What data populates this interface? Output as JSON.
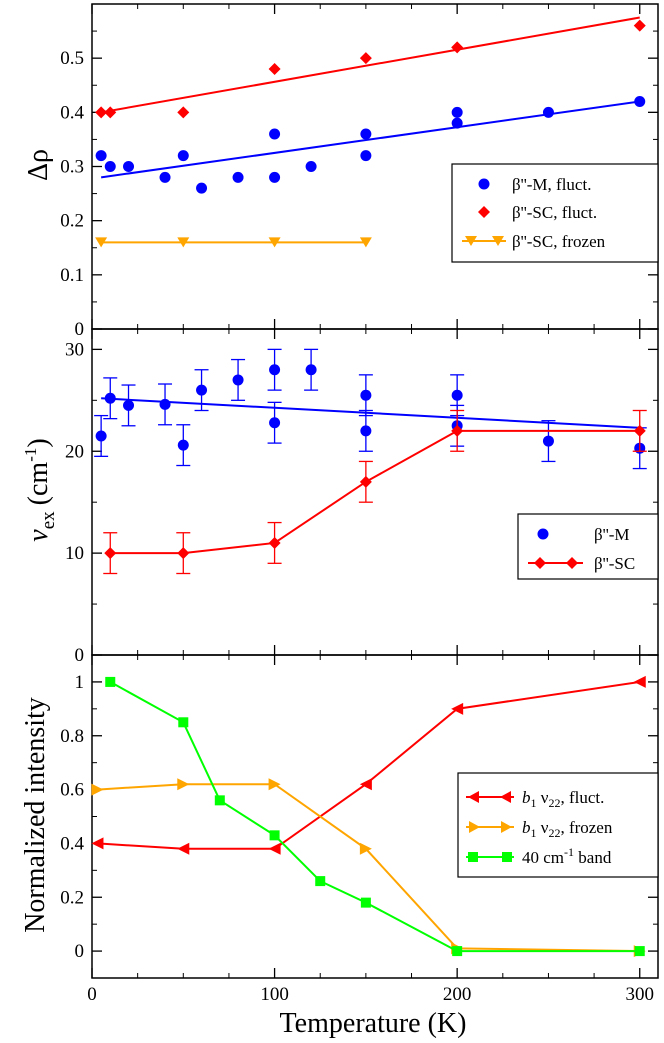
{
  "chart_data": [
    {
      "type": "scatter",
      "panel": "top",
      "ylabel": "Δρ",
      "xlim": [
        0,
        310
      ],
      "ylim": [
        0,
        0.6
      ],
      "yticks": [
        0,
        0.1,
        0.2,
        0.3,
        0.4,
        0.5
      ],
      "ytick_labels": [
        "0",
        "0.1",
        "0.2",
        "0.3",
        "0.4",
        "0.5"
      ],
      "legend_position": "middle-right",
      "series": [
        {
          "name": "β''-M, fluct.",
          "color": "#0000ff",
          "marker": "circle",
          "x": [
            5,
            10,
            20,
            40,
            50,
            60,
            80,
            100,
            100,
            120,
            150,
            150,
            200,
            200,
            250,
            300
          ],
          "y": [
            0.32,
            0.3,
            0.3,
            0.28,
            0.32,
            0.26,
            0.28,
            0.36,
            0.28,
            0.3,
            0.36,
            0.32,
            0.4,
            0.38,
            0.4,
            0.42
          ],
          "fit": {
            "x": [
              5,
              300
            ],
            "y": [
              0.28,
              0.42
            ]
          }
        },
        {
          "name": "β''-SC, fluct.",
          "color": "#ff0000",
          "marker": "diamond",
          "x": [
            5,
            10,
            50,
            100,
            150,
            200,
            300
          ],
          "y": [
            0.4,
            0.4,
            0.4,
            0.48,
            0.5,
            0.52,
            0.56
          ],
          "fit": {
            "x": [
              5,
              300
            ],
            "y": [
              0.4,
              0.575
            ]
          }
        },
        {
          "name": "β''-SC, frozen",
          "color": "#ffa500",
          "marker": "triangle-down",
          "line": true,
          "x": [
            5,
            50,
            100,
            150
          ],
          "y": [
            0.16,
            0.16,
            0.16,
            0.16
          ]
        }
      ]
    },
    {
      "type": "scatter",
      "panel": "middle",
      "ylabel_main": "ν",
      "ylabel_sub": "ex",
      "ylabel_unit": "(cm",
      "ylabel_sup": "-1",
      "ylabel_close": ")",
      "xlim": [
        0,
        310
      ],
      "ylim": [
        0,
        32
      ],
      "yticks": [
        0,
        10,
        20,
        30
      ],
      "ytick_labels": [
        "0",
        "10",
        "20",
        "30"
      ],
      "legend_position": "lower-right",
      "series": [
        {
          "name": "β''-M",
          "color": "#0000ff",
          "marker": "circle",
          "x": [
            5,
            10,
            20,
            40,
            50,
            60,
            80,
            100,
            100,
            120,
            150,
            150,
            200,
            200,
            250,
            300
          ],
          "y": [
            21.5,
            25.2,
            24.5,
            24.6,
            20.6,
            26.0,
            27.0,
            28.0,
            22.8,
            28.0,
            25.5,
            22.0,
            25.5,
            22.5,
            21.0,
            20.3
          ],
          "err": [
            2,
            2,
            2,
            2,
            2,
            2,
            2,
            2,
            2,
            2,
            2,
            2,
            2,
            2,
            2,
            2
          ],
          "fit": {
            "x": [
              5,
              300
            ],
            "y": [
              25.2,
              22.3
            ]
          }
        },
        {
          "name": "β''-SC",
          "color": "#ff0000",
          "marker": "diamond",
          "line": true,
          "x": [
            10,
            50,
            100,
            150,
            200,
            300
          ],
          "y": [
            10,
            10,
            11,
            17,
            22,
            22
          ],
          "err": [
            2,
            2,
            2,
            2,
            2,
            2
          ]
        }
      ]
    },
    {
      "type": "line",
      "panel": "bottom",
      "ylabel": "Normalized intensity",
      "xlabel": "Temperature (K)",
      "xlim": [
        0,
        310
      ],
      "xticks": [
        0,
        100,
        200,
        300
      ],
      "xtick_labels": [
        "0",
        "100",
        "200",
        "300"
      ],
      "ylim": [
        -0.1,
        1.1
      ],
      "yticks": [
        0,
        0.2,
        0.4,
        0.6,
        0.8,
        1
      ],
      "ytick_labels": [
        "0",
        "0.2",
        "0.4",
        "0.6",
        "0.8",
        "1"
      ],
      "legend_position": "lower-right",
      "series": [
        {
          "name_italic": "b",
          "name_sub1": "1",
          "name_mid": " ν",
          "name_sub2": "22",
          "name_tail": ", fluct.",
          "color": "#ff0000",
          "marker": "triangle-left",
          "x": [
            3,
            50,
            100,
            150,
            200,
            300
          ],
          "y": [
            0.4,
            0.38,
            0.38,
            0.62,
            0.9,
            1.0
          ]
        },
        {
          "name_italic": "b",
          "name_sub1": "1",
          "name_mid": " ν",
          "name_sub2": "22",
          "name_tail": ", frozen",
          "color": "#ffa500",
          "marker": "triangle-right",
          "x": [
            3,
            50,
            100,
            150,
            200,
            300
          ],
          "y": [
            0.6,
            0.62,
            0.62,
            0.38,
            0.01,
            0.0
          ]
        },
        {
          "name_main": "40 cm",
          "name_sup": "-1",
          "name_tail": " band",
          "color": "#00ff00",
          "marker": "square",
          "x": [
            10,
            50,
            70,
            100,
            125,
            150,
            200,
            300
          ],
          "y": [
            1.0,
            0.85,
            0.56,
            0.43,
            0.26,
            0.18,
            0.0,
            0.0
          ]
        }
      ]
    }
  ]
}
